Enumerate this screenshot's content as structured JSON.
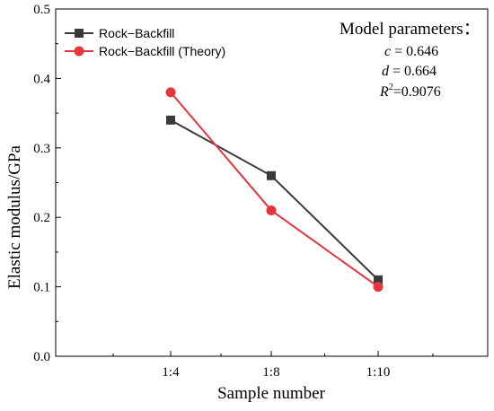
{
  "chart_data": {
    "type": "line",
    "categories": [
      "1:4",
      "1:8",
      "1:10"
    ],
    "series": [
      {
        "name": "Rock−Backfill",
        "values": [
          0.34,
          0.26,
          0.11
        ],
        "color": "#3a3a3a",
        "marker": "square"
      },
      {
        "name": "Rock−Backfill (Theory)",
        "values": [
          0.38,
          0.21,
          0.1
        ],
        "color": "#e8343c",
        "marker": "circle"
      }
    ],
    "xlabel": "Sample number",
    "ylabel": "Elastic modulus/GPa",
    "ylim": [
      0,
      0.5
    ],
    "yticks": [
      "0.0",
      "0.1",
      "0.2",
      "0.3",
      "0.4",
      "0.5"
    ],
    "grid": false,
    "legend_position": "top-left",
    "annotation": {
      "title": "Model parameters：",
      "c_label": "c",
      "c_value": " = 0.646",
      "d_label": "d",
      "d_value": " = 0.664",
      "r_label": "R",
      "r_exp": "2",
      "r_value": "=0.9076"
    }
  }
}
